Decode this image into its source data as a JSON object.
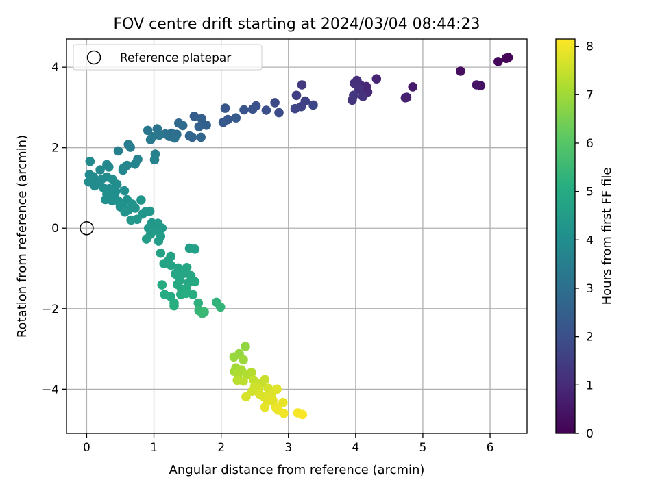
{
  "chart_data": {
    "type": "scatter",
    "title": "FOV centre drift starting at 2024/03/04 08:44:23",
    "xlabel": "Angular distance from reference (arcmin)",
    "ylabel": "Rotation from reference (arcmin)",
    "xlim": [
      -0.3,
      6.55
    ],
    "ylim": [
      -5.1,
      4.7
    ],
    "xticks": [
      0,
      1,
      2,
      3,
      4,
      5,
      6
    ],
    "yticks": [
      4,
      2,
      0,
      -2,
      -4
    ],
    "ytick_labels": [
      "4",
      "2",
      "0",
      "−2",
      "−4"
    ],
    "grid": true,
    "legend": {
      "location": "top-left",
      "entries": [
        "Reference platepar"
      ]
    },
    "reference_point": {
      "x": 0,
      "y": 0,
      "marker": "open-circle"
    },
    "colorbar": {
      "label": "Hours from first FF file",
      "colormap": "viridis",
      "range": [
        0,
        8.15
      ],
      "ticks": [
        0,
        1,
        2,
        3,
        4,
        5,
        6,
        7,
        8
      ]
    },
    "points": [
      [
        6.27,
        4.24,
        0.05
      ],
      [
        6.24,
        4.22,
        0.1
      ],
      [
        6.12,
        4.14,
        0.15
      ],
      [
        5.56,
        3.9,
        0.3
      ],
      [
        5.86,
        3.54,
        0.4
      ],
      [
        5.8,
        3.56,
        0.45
      ],
      [
        4.85,
        3.51,
        0.6
      ],
      [
        4.76,
        3.25,
        0.7
      ],
      [
        4.74,
        3.24,
        0.75
      ],
      [
        4.31,
        3.71,
        0.85
      ],
      [
        4.16,
        3.52,
        0.9
      ],
      [
        4.18,
        3.38,
        0.95
      ],
      [
        4.07,
        3.56,
        1.0
      ],
      [
        4.02,
        3.67,
        1.05
      ],
      [
        3.98,
        3.6,
        1.1
      ],
      [
        4.05,
        3.45,
        1.15
      ],
      [
        4.11,
        3.27,
        1.2
      ],
      [
        3.95,
        3.18,
        1.25
      ],
      [
        3.97,
        3.3,
        1.3
      ],
      [
        3.2,
        3.56,
        1.4
      ],
      [
        3.12,
        3.3,
        1.5
      ],
      [
        3.25,
        3.16,
        1.6
      ],
      [
        3.19,
        3.02,
        1.65
      ],
      [
        3.1,
        2.97,
        1.7
      ],
      [
        3.37,
        3.06,
        1.75
      ],
      [
        2.8,
        3.12,
        1.85
      ],
      [
        2.86,
        2.87,
        1.9
      ],
      [
        2.67,
        2.93,
        2.0
      ],
      [
        2.52,
        3.04,
        2.05
      ],
      [
        2.47,
        2.96,
        2.1
      ],
      [
        2.34,
        2.94,
        2.15
      ],
      [
        2.06,
        2.98,
        2.2
      ],
      [
        2.1,
        2.7,
        2.25
      ],
      [
        2.03,
        2.63,
        2.3
      ],
      [
        2.22,
        2.74,
        2.35
      ],
      [
        1.6,
        2.78,
        2.45
      ],
      [
        1.71,
        2.72,
        2.5
      ],
      [
        1.78,
        2.56,
        2.55
      ],
      [
        1.67,
        2.52,
        2.6
      ],
      [
        1.57,
        2.26,
        2.65
      ],
      [
        1.53,
        2.29,
        2.7
      ],
      [
        1.7,
        2.26,
        2.75
      ],
      [
        1.37,
        2.61,
        2.8
      ],
      [
        1.43,
        2.55,
        2.85
      ],
      [
        1.26,
        2.36,
        2.9
      ],
      [
        1.34,
        2.33,
        2.95
      ],
      [
        1.23,
        2.28,
        3.0
      ],
      [
        1.17,
        2.34,
        3.05
      ],
      [
        1.31,
        2.24,
        3.1
      ],
      [
        1.05,
        2.47,
        3.15
      ],
      [
        0.91,
        2.43,
        3.2
      ],
      [
        1.08,
        2.31,
        3.25
      ],
      [
        0.98,
        2.27,
        3.3
      ],
      [
        0.95,
        2.2,
        3.35
      ],
      [
        0.62,
        2.08,
        3.4
      ],
      [
        0.65,
        2.01,
        3.45
      ],
      [
        0.47,
        1.92,
        3.5
      ],
      [
        1.02,
        1.84,
        3.55
      ],
      [
        1.01,
        1.7,
        3.6
      ],
      [
        0.76,
        1.71,
        3.65
      ],
      [
        0.72,
        1.59,
        3.7
      ],
      [
        0.6,
        1.56,
        3.72
      ],
      [
        0.55,
        1.5,
        3.75
      ],
      [
        0.54,
        1.44,
        3.78
      ],
      [
        0.3,
        1.58,
        3.8
      ],
      [
        0.33,
        1.52,
        3.82
      ],
      [
        0.05,
        1.66,
        3.84
      ],
      [
        0.2,
        1.45,
        3.85
      ],
      [
        0.04,
        1.33,
        3.87
      ],
      [
        0.1,
        1.28,
        3.88
      ],
      [
        0.22,
        1.21,
        3.9
      ],
      [
        0.16,
        1.15,
        3.92
      ],
      [
        0.03,
        1.15,
        3.93
      ],
      [
        0.12,
        1.05,
        3.94
      ],
      [
        0.3,
        1.27,
        3.95
      ],
      [
        0.38,
        1.22,
        3.96
      ],
      [
        0.45,
        1.09,
        3.97
      ],
      [
        0.25,
        1.0,
        3.98
      ],
      [
        0.34,
        0.98,
        3.99
      ],
      [
        0.43,
        0.92,
        4.0
      ],
      [
        0.56,
        0.93,
        4.02
      ],
      [
        0.42,
        0.86,
        4.04
      ],
      [
        0.3,
        0.85,
        4.05
      ],
      [
        0.35,
        0.78,
        4.06
      ],
      [
        0.28,
        0.71,
        4.07
      ],
      [
        0.38,
        0.68,
        4.08
      ],
      [
        0.47,
        0.68,
        4.1
      ],
      [
        0.6,
        0.71,
        4.12
      ],
      [
        0.54,
        0.58,
        4.14
      ],
      [
        0.68,
        0.6,
        4.15
      ],
      [
        0.5,
        0.53,
        4.16
      ],
      [
        0.62,
        0.45,
        4.18
      ],
      [
        0.72,
        0.5,
        4.2
      ],
      [
        0.57,
        0.4,
        4.22
      ],
      [
        0.81,
        0.7,
        4.24
      ],
      [
        0.87,
        0.4,
        4.26
      ],
      [
        0.94,
        0.42,
        4.28
      ],
      [
        0.83,
        0.35,
        4.3
      ],
      [
        0.75,
        0.22,
        4.32
      ],
      [
        0.66,
        0.2,
        4.34
      ],
      [
        0.97,
        0.13,
        4.36
      ],
      [
        1.06,
        0.12,
        4.38
      ],
      [
        0.92,
        0.0,
        4.4
      ],
      [
        1.12,
        0.0,
        4.42
      ],
      [
        1.01,
        -0.05,
        4.44
      ],
      [
        0.95,
        -0.15,
        4.46
      ],
      [
        1.1,
        -0.2,
        4.48
      ],
      [
        0.89,
        -0.27,
        4.5
      ],
      [
        1.07,
        -0.32,
        4.52
      ],
      [
        1.53,
        -0.5,
        4.6
      ],
      [
        1.61,
        -0.52,
        4.65
      ],
      [
        1.1,
        -0.62,
        4.68
      ],
      [
        1.25,
        -0.7,
        4.7
      ],
      [
        1.22,
        -0.8,
        4.72
      ],
      [
        1.15,
        -0.88,
        4.74
      ],
      [
        1.25,
        -0.92,
        4.76
      ],
      [
        1.36,
        -0.99,
        4.78
      ],
      [
        1.49,
        -0.98,
        4.8
      ],
      [
        1.45,
        -1.12,
        4.82
      ],
      [
        1.55,
        -1.18,
        4.84
      ],
      [
        1.32,
        -1.14,
        4.86
      ],
      [
        1.39,
        -1.3,
        4.88
      ],
      [
        1.52,
        -1.35,
        4.9
      ],
      [
        1.61,
        -1.33,
        4.92
      ],
      [
        1.35,
        -1.4,
        4.94
      ],
      [
        1.41,
        -1.52,
        4.96
      ],
      [
        1.48,
        -1.5,
        4.98
      ],
      [
        1.12,
        -1.41,
        5.0
      ],
      [
        1.16,
        -1.65,
        5.02
      ],
      [
        1.25,
        -1.7,
        5.04
      ],
      [
        1.4,
        -1.65,
        5.06
      ],
      [
        1.48,
        -1.62,
        5.08
      ],
      [
        1.58,
        -1.65,
        5.1
      ],
      [
        1.3,
        -1.86,
        5.12
      ],
      [
        1.3,
        -1.93,
        5.14
      ],
      [
        1.66,
        -1.86,
        5.2
      ],
      [
        1.93,
        -1.84,
        5.3
      ],
      [
        1.99,
        -1.96,
        5.35
      ],
      [
        1.67,
        -2.05,
        5.4
      ],
      [
        1.72,
        -2.12,
        5.45
      ],
      [
        1.75,
        -2.08,
        5.5
      ],
      [
        2.36,
        -2.94,
        6.8
      ],
      [
        2.27,
        -3.12,
        6.85
      ],
      [
        2.19,
        -3.2,
        6.9
      ],
      [
        2.33,
        -3.27,
        6.95
      ],
      [
        2.22,
        -3.47,
        7.0
      ],
      [
        2.2,
        -3.56,
        7.05
      ],
      [
        2.3,
        -3.52,
        7.1
      ],
      [
        2.25,
        -3.63,
        7.15
      ],
      [
        2.39,
        -3.63,
        7.2
      ],
      [
        2.45,
        -3.58,
        7.25
      ],
      [
        2.24,
        -3.78,
        7.3
      ],
      [
        2.33,
        -3.8,
        7.35
      ],
      [
        2.48,
        -3.77,
        7.4
      ],
      [
        2.6,
        -3.85,
        7.45
      ],
      [
        2.65,
        -3.76,
        7.5
      ],
      [
        2.5,
        -3.93,
        7.55
      ],
      [
        2.55,
        -3.98,
        7.6
      ],
      [
        2.46,
        -4.05,
        7.62
      ],
      [
        2.7,
        -3.98,
        7.65
      ],
      [
        2.37,
        -4.19,
        7.68
      ],
      [
        2.57,
        -4.12,
        7.7
      ],
      [
        2.63,
        -4.18,
        7.72
      ],
      [
        2.75,
        -4.12,
        7.75
      ],
      [
        2.83,
        -4.0,
        7.78
      ],
      [
        2.69,
        -4.3,
        7.8
      ],
      [
        2.77,
        -4.28,
        7.82
      ],
      [
        2.65,
        -4.45,
        7.85
      ],
      [
        2.92,
        -4.33,
        7.88
      ],
      [
        2.81,
        -4.45,
        7.9
      ],
      [
        2.85,
        -4.52,
        7.95
      ],
      [
        2.93,
        -4.6,
        8.0
      ],
      [
        3.14,
        -4.59,
        8.05
      ],
      [
        3.21,
        -4.63,
        8.1
      ]
    ]
  }
}
